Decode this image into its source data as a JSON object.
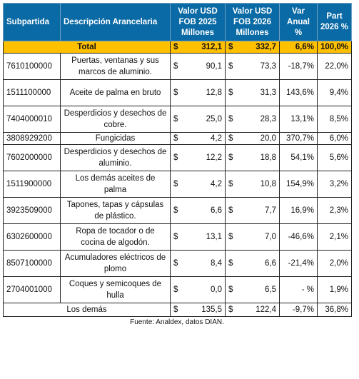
{
  "header": {
    "subpartida": "Subpartida",
    "descripcion": "Descripción Arancelaria",
    "valor2025": "Valor USD FOB 2025 Millones",
    "valor2026": "Valor USD FOB 2026 Millones",
    "var": "Var Anual %",
    "part": "Part 2026 %"
  },
  "total": {
    "label": "Total",
    "cur": "$",
    "v2025": "312,1",
    "v2026": "332,7",
    "var": "6,6%",
    "part": "100,0%"
  },
  "rows": [
    {
      "code": "7610100000",
      "desc": "Puertas, ventanas y sus marcos de aluminio.",
      "v2025": "90,1",
      "v2026": "73,3",
      "var": "-18,7%",
      "part": "22,0%"
    },
    {
      "code": "1511100000",
      "desc": "Aceite de palma en bruto",
      "v2025": "12,8",
      "v2026": "31,3",
      "var": "143,6%",
      "part": "9,4%"
    },
    {
      "code": "7404000010",
      "desc": "Desperdicios y desechos de cobre.",
      "v2025": "25,0",
      "v2026": "28,3",
      "var": "13,1%",
      "part": "8,5%"
    },
    {
      "code": "3808929200",
      "desc": "Fungicidas",
      "v2025": "4,2",
      "v2026": "20,0",
      "var": "370,7%",
      "part": "6,0%"
    },
    {
      "code": "7602000000",
      "desc": "Desperdicios y desechos de aluminio.",
      "v2025": "12,2",
      "v2026": "18,8",
      "var": "54,1%",
      "part": "5,6%"
    },
    {
      "code": "1511900000",
      "desc": "Los demás aceites de palma",
      "v2025": "4,2",
      "v2026": "10,8",
      "var": "154,9%",
      "part": "3,2%"
    },
    {
      "code": "3923509000",
      "desc": "Tapones, tapas y cápsulas de plástico.",
      "v2025": "6,6",
      "v2026": "7,7",
      "var": "16,9%",
      "part": "2,3%"
    },
    {
      "code": "6302600000",
      "desc": "Ropa de tocador o de cocina de algodón.",
      "v2025": "13,1",
      "v2026": "7,0",
      "var": "-46,6%",
      "part": "2,1%"
    },
    {
      "code": "8507100000",
      "desc": "Acumuladores eléctricos de plomo",
      "v2025": "8,4",
      "v2026": "6,6",
      "var": "-21,4%",
      "part": "2,0%"
    },
    {
      "code": "2704001000",
      "desc": "Coques y semicoques de hulla",
      "v2025": "0,0",
      "v2026": "6,5",
      "var": "- %",
      "part": "1,9%"
    }
  ],
  "others": {
    "label": "Los demás",
    "v2025": "135,5",
    "v2026": "122,4",
    "var": "-9,7%",
    "part": "36,8%"
  },
  "source": "Fuente: Analdex, datos DIAN."
}
